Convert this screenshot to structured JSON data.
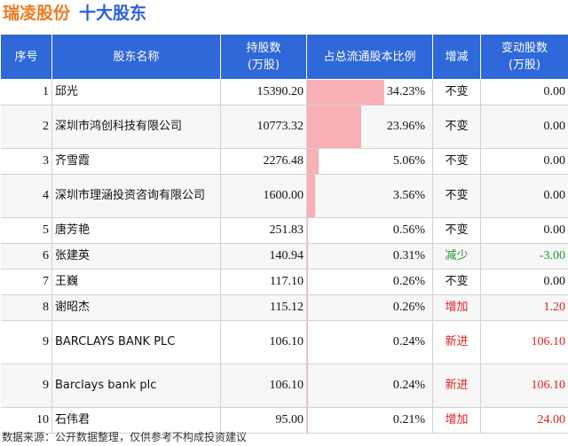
{
  "header": {
    "company": "瑞凌股份",
    "section": "十大股东"
  },
  "columns": [
    "序号",
    "股东名称",
    "持股数\n(万股)",
    "占总流通股本比例",
    "增减",
    "变动股数\n(万股)"
  ],
  "rows": [
    {
      "rank": "1",
      "name": "邱光",
      "shares": "15390.20",
      "ratio": "34.23%",
      "ratio_value": 34.23,
      "change": "不变",
      "change_kind": "same",
      "delta": "0.00",
      "tall": false
    },
    {
      "rank": "2",
      "name": "深圳市鸿创科技有限公司",
      "shares": "10773.32",
      "ratio": "23.96%",
      "ratio_value": 23.96,
      "change": "不变",
      "change_kind": "same",
      "delta": "0.00",
      "tall": true
    },
    {
      "rank": "3",
      "name": "齐雪霞",
      "shares": "2276.48",
      "ratio": "5.06%",
      "ratio_value": 5.06,
      "change": "不变",
      "change_kind": "same",
      "delta": "0.00",
      "tall": false
    },
    {
      "rank": "4",
      "name": "深圳市理涵投资咨询有限公司",
      "shares": "1600.00",
      "ratio": "3.56%",
      "ratio_value": 3.56,
      "change": "不变",
      "change_kind": "same",
      "delta": "0.00",
      "tall": true
    },
    {
      "rank": "5",
      "name": "唐芳艳",
      "shares": "251.83",
      "ratio": "0.56%",
      "ratio_value": 0.56,
      "change": "不变",
      "change_kind": "same",
      "delta": "0.00",
      "tall": false
    },
    {
      "rank": "6",
      "name": "张建英",
      "shares": "140.94",
      "ratio": "0.31%",
      "ratio_value": 0.31,
      "change": "减少",
      "change_kind": "down",
      "delta": "-3.00",
      "tall": false
    },
    {
      "rank": "7",
      "name": "王巍",
      "shares": "117.10",
      "ratio": "0.26%",
      "ratio_value": 0.26,
      "change": "不变",
      "change_kind": "same",
      "delta": "0.00",
      "tall": false
    },
    {
      "rank": "8",
      "name": "谢昭杰",
      "shares": "115.12",
      "ratio": "0.26%",
      "ratio_value": 0.26,
      "change": "增加",
      "change_kind": "up",
      "delta": "1.20",
      "tall": false
    },
    {
      "rank": "9",
      "name": "BARCLAYS BANK PLC",
      "shares": "106.10",
      "ratio": "0.24%",
      "ratio_value": 0.24,
      "change": "新进",
      "change_kind": "up",
      "delta": "106.10",
      "tall": true
    },
    {
      "rank": "9",
      "name": "Barclays bank plc",
      "shares": "106.10",
      "ratio": "0.24%",
      "ratio_value": 0.24,
      "change": "新进",
      "change_kind": "up",
      "delta": "106.10",
      "tall": true
    },
    {
      "rank": "10",
      "name": "石伟君",
      "shares": "95.00",
      "ratio": "0.21%",
      "ratio_value": 0.21,
      "change": "增加",
      "change_kind": "up",
      "delta": "24.00",
      "tall": false
    }
  ],
  "footer": "数据来源：公开数据整理，仅供参考不构成投资建议",
  "colors": {
    "header_bg": "#2f68d8",
    "bar": "#f8b0b6",
    "increase": "#e02020",
    "decrease": "#1a9a2a",
    "company": "#f07a1e",
    "section": "#2c5fd9"
  }
}
